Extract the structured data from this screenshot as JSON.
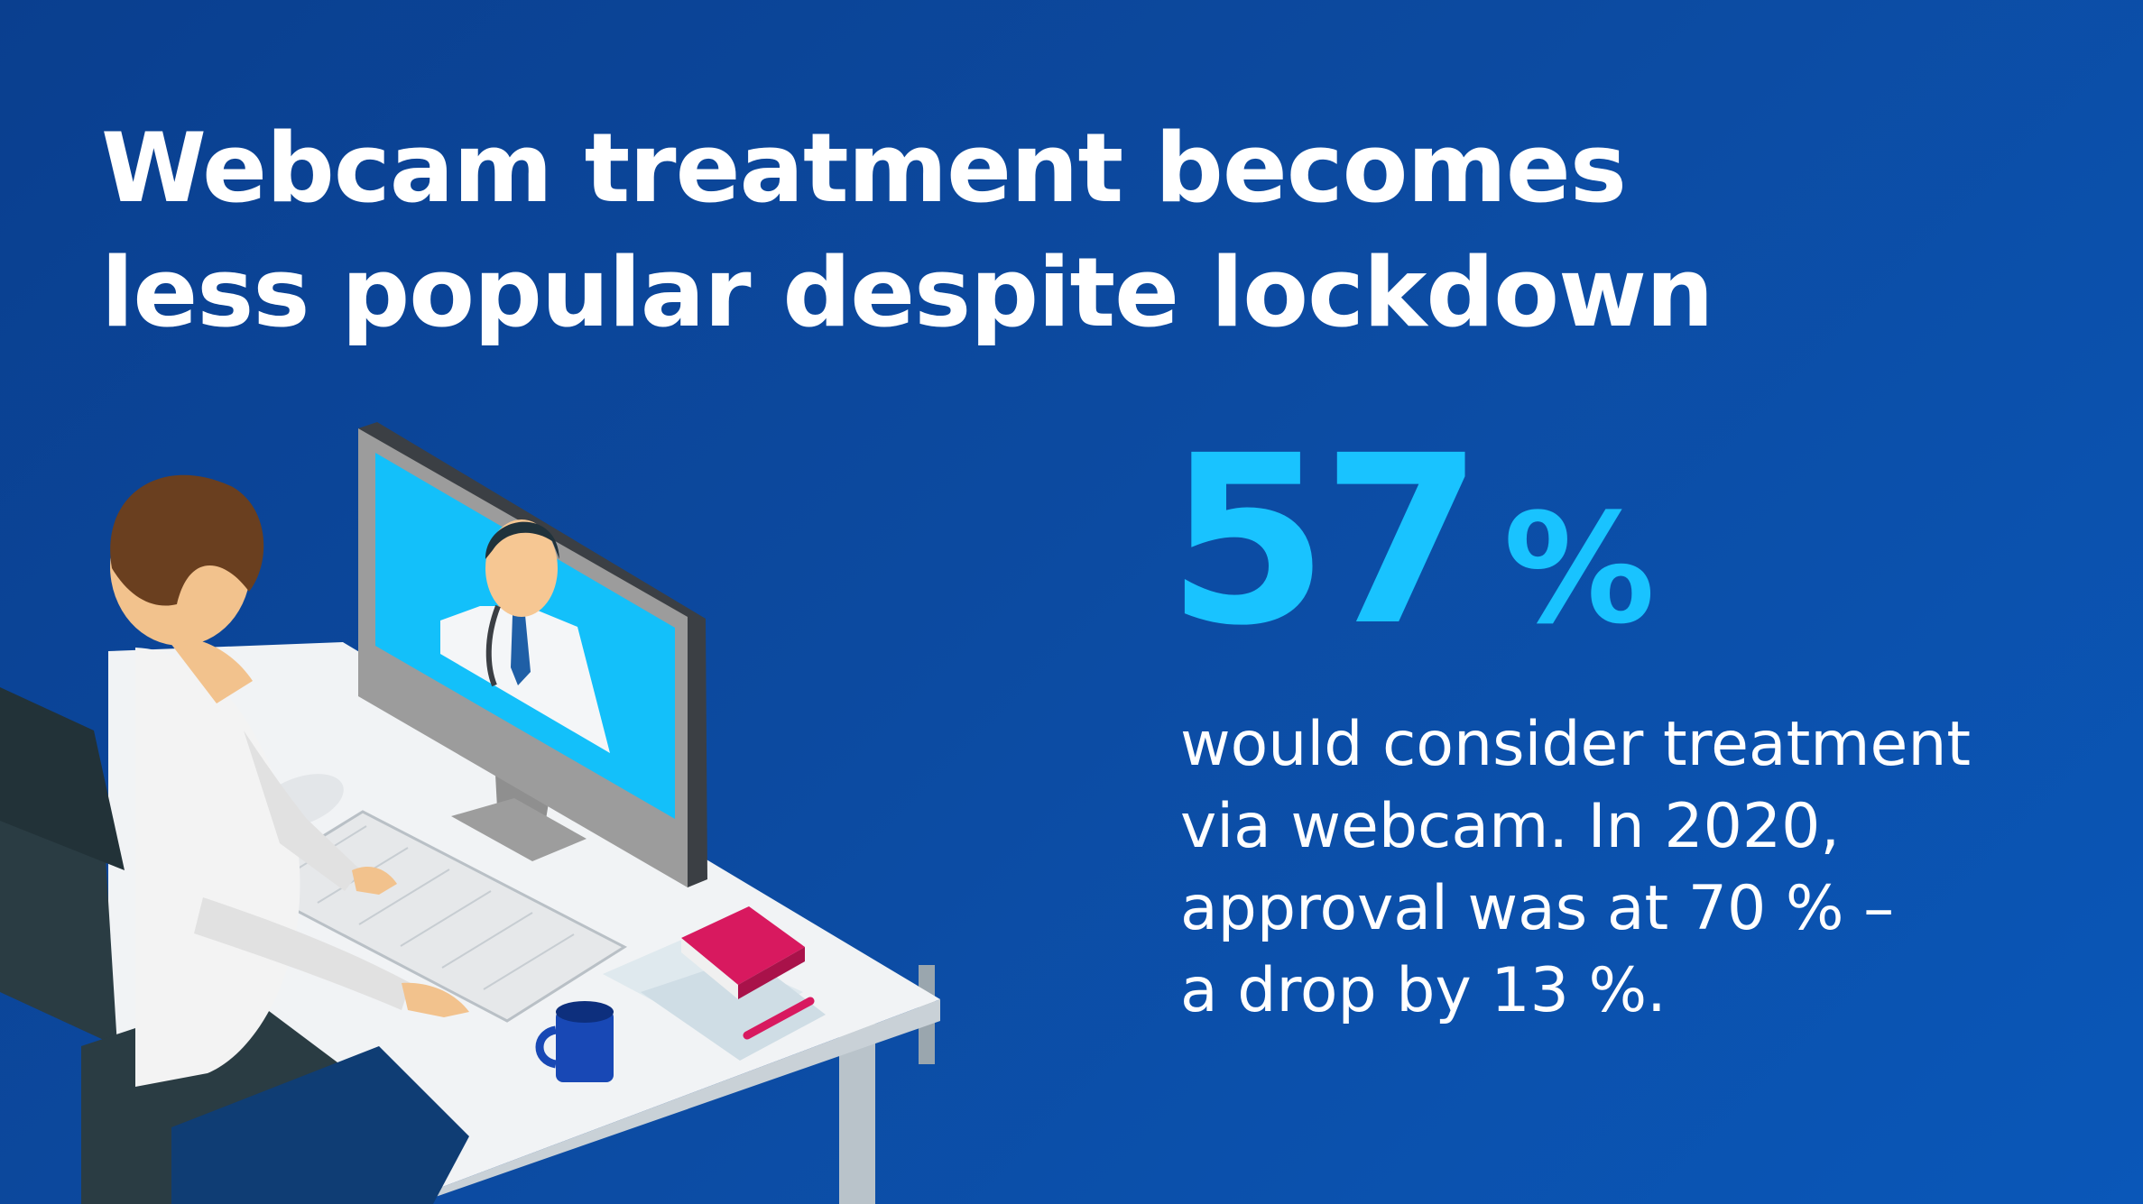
{
  "headline": {
    "line1": "Webcam treatment becomes",
    "line2": "less popular despite lockdown"
  },
  "stat": {
    "number": "57",
    "unit": "%"
  },
  "description": {
    "line1": "would consider treatment",
    "line2": "via webcam. In 2020,",
    "line3": "approval was at 70 % –",
    "line4": "a drop by 13 %."
  },
  "colors": {
    "background": "#0c4aa0",
    "accent": "#19c3ff",
    "text": "#ffffff",
    "screen": "#13c0fa",
    "notebook": "#d8195f"
  },
  "illustration": {
    "icon": "person-video-consultation-icon"
  }
}
